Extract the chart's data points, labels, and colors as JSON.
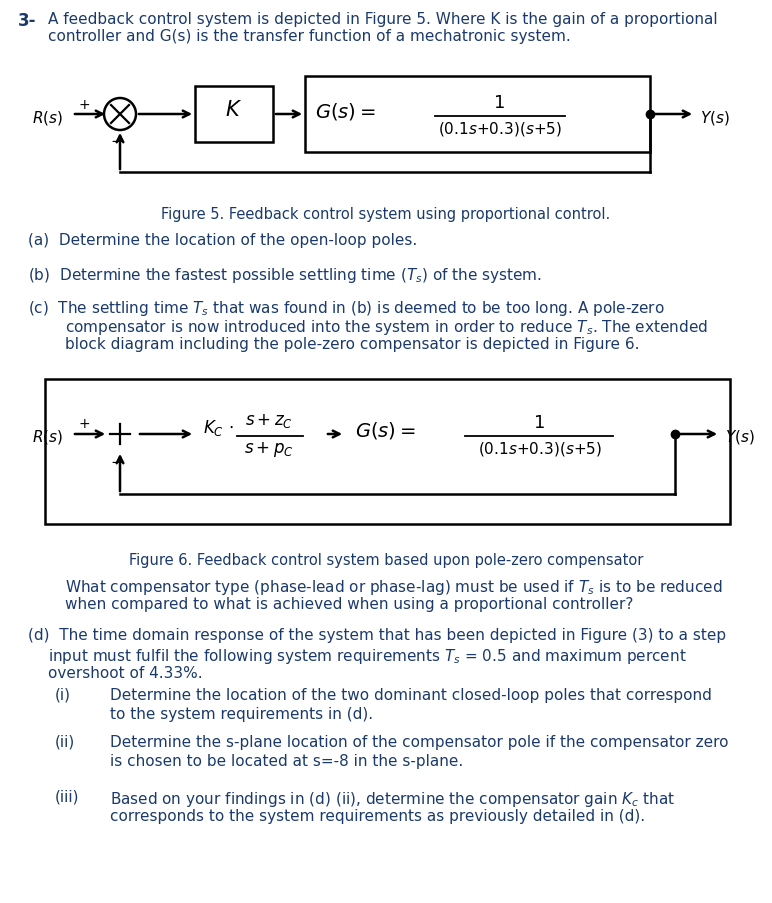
{
  "bg_color": "#ffffff",
  "text_color": "#1a1a2e",
  "blue_color": "#1b3a6b",
  "black": "#000000",
  "fig5_caption": "Figure 5. Feedback control system using proportional control.",
  "fig6_caption": "Figure 6. Feedback control system based upon pole-zero compensator",
  "title_num": "3-",
  "title_line1": "A feedback control system is depicted in Figure 5. Where K is the gain of a proportional",
  "title_line2": "controller and G(s) is the transfer function of a mechatronic system.",
  "part_a": "(a)  Determine the location of the open-loop poles.",
  "part_b_pre": "(b)  Determine the fastest possible settling time (",
  "part_b_post": ") of the system.",
  "part_c1": "(c)  The settling time ",
  "part_c1b": " that was found in (b) is deemed to be too long. A pole-zero",
  "part_c2a": "compensator is now introduced into the system in order to reduce ",
  "part_c2b": ". The extended",
  "part_c3": "block diagram including the pole-zero compensator is depicted in Figure 6.",
  "part_c_q1": "What compensator type (phase-lead or phase-lag) must be used if ",
  "part_c_q1b": " is to be reduced",
  "part_c_q2": "when compared to what is achieved when using a proportional controller?",
  "part_d1": "(d)  The time domain response of the system that has been depicted in Figure (3) to a step",
  "part_d2a": "input must fulfil the following system requirements ",
  "part_d2b": " = 0.5 and maximum percent",
  "part_d3": "overshoot of 4.33%.",
  "part_di": "(i)",
  "part_di_t1": "Determine the location of the two dominant closed-loop poles that correspond",
  "part_di_t2": "to the system requirements in (d).",
  "part_dii": "(ii)",
  "part_dii_t1": "Determine the s-plane location of the compensator pole if the compensator zero",
  "part_dii_t2": "is chosen to be located at s=-8 in the s-plane.",
  "part_diii": "(iii)",
  "part_diii_t1a": "Based on your findings in (d) (ii), determine the compensator gain ",
  "part_diii_t1b": " that",
  "part_diii_t2": "corresponds to the system requirements as previously detailed in (d)."
}
